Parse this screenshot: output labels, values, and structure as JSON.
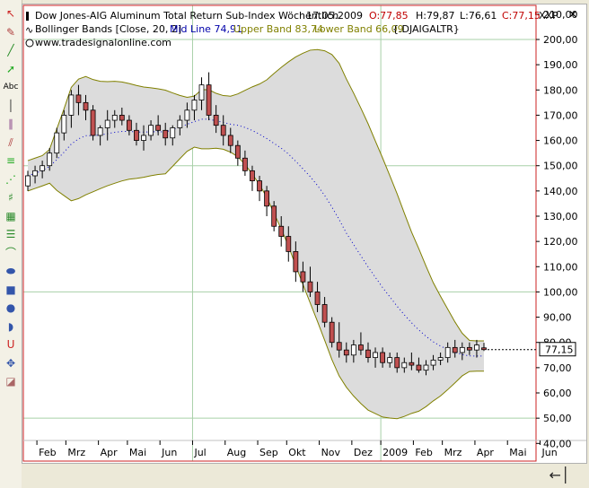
{
  "header": {
    "title": "Dow Jones-AIG Aluminum Total Return Sub-Index Wöchentlich",
    "date": "17.05.2009",
    "ohlc": [
      {
        "label": "O:77,85",
        "color": "#c00000"
      },
      {
        "label": "H:79,87",
        "color": "#000000"
      },
      {
        "label": "L:76,61",
        "color": "#000000"
      },
      {
        "label": "C:77,15",
        "color": "#c00000"
      }
    ],
    "indicator": "Bollinger Bands [Close, 20, 2]",
    "mid_label": "Mid Line 74,91",
    "upper_label": "Upper Band 83,74",
    "lower_label": "Lower Band 66,09",
    "symbol": "{.DJAIGALTR}",
    "website": "www.tradesignalonline.com",
    "currency": "XXP",
    "last_price": "77,15"
  },
  "colors": {
    "band_fill": "#dcdcdc",
    "band_line": "#808000",
    "mid_line": "#0000cc",
    "candle_up": "#ffffff",
    "candle_down": "#c05050",
    "grid": "#a8d0a8",
    "frame_red": "#cc2222"
  },
  "toolbar_icons": [
    "cursor-icon",
    "pencil-icon",
    "line-icon",
    "arrow-icon",
    "text-icon",
    "vertical-line-icon",
    "parallel-lines-icon",
    "trend-channel-icon",
    "fibonacci-icon",
    "fan-icon",
    "gann-icon",
    "grid-tool-icon",
    "regression-icon",
    "arc-icon",
    "ellipse-icon",
    "rectangle-icon",
    "circle-icon",
    "half-circle-icon",
    "magnet-icon",
    "crosshair-icon",
    "eraser-icon"
  ],
  "chart_data": {
    "type": "candlestick",
    "title": "Dow Jones-AIG Aluminum Total Return Sub-Index Wöchentlich",
    "ylim": [
      30,
      215
    ],
    "y_ticks": [
      40,
      50,
      60,
      70,
      80,
      90,
      100,
      110,
      120,
      130,
      140,
      150,
      160,
      170,
      180,
      190,
      200,
      210
    ],
    "y_tick_labels": [
      "40,00",
      "50,00",
      "60,00",
      "70,00",
      "80,00",
      "90,00",
      "100,00",
      "110,00",
      "120,00",
      "130,00",
      "140,00",
      "150,00",
      "160,00",
      "170,00",
      "180,00",
      "190,00",
      "200,00",
      "210,00"
    ],
    "x_ticks": [
      {
        "label": "Feb",
        "idx": 1.5
      },
      {
        "label": "Mrz",
        "idx": 5.5
      },
      {
        "label": "Apr",
        "idx": 10.0
      },
      {
        "label": "Mai",
        "idx": 14.0
      },
      {
        "label": "Jun",
        "idx": 18.5
      },
      {
        "label": "Jul",
        "idx": 23.0
      },
      {
        "label": "Aug",
        "idx": 27.5
      },
      {
        "label": "Sep",
        "idx": 32.0
      },
      {
        "label": "Okt",
        "idx": 36.0
      },
      {
        "label": "Nov",
        "idx": 40.5
      },
      {
        "label": "Dez",
        "idx": 45.0
      },
      {
        "label": "2009",
        "idx": 49.0
      },
      {
        "label": "Feb",
        "idx": 53.5
      },
      {
        "label": "Mrz",
        "idx": 57.5
      },
      {
        "label": "Apr",
        "idx": 62.0
      },
      {
        "label": "Mai",
        "idx": 66.5
      },
      {
        "label": "Jun",
        "idx": 71.0
      }
    ],
    "grid_y": [
      50,
      100,
      150,
      200
    ],
    "grid_x_idx": [
      23.0,
      49.0
    ],
    "ohlc": [
      [
        142,
        148,
        140,
        146
      ],
      [
        146,
        150,
        143,
        148
      ],
      [
        148,
        152,
        145,
        150
      ],
      [
        150,
        157,
        148,
        155
      ],
      [
        155,
        165,
        153,
        163
      ],
      [
        163,
        172,
        160,
        170
      ],
      [
        170,
        180,
        165,
        178
      ],
      [
        178,
        182,
        170,
        175
      ],
      [
        175,
        178,
        168,
        172
      ],
      [
        172,
        174,
        160,
        162
      ],
      [
        162,
        166,
        158,
        165
      ],
      [
        165,
        172,
        160,
        168
      ],
      [
        168,
        172,
        165,
        170
      ],
      [
        170,
        173,
        166,
        168
      ],
      [
        168,
        170,
        162,
        164
      ],
      [
        164,
        167,
        158,
        160
      ],
      [
        160,
        166,
        156,
        162
      ],
      [
        162,
        168,
        160,
        166
      ],
      [
        166,
        170,
        162,
        164
      ],
      [
        164,
        167,
        158,
        161
      ],
      [
        161,
        166,
        158,
        165
      ],
      [
        165,
        170,
        162,
        168
      ],
      [
        168,
        175,
        165,
        172
      ],
      [
        172,
        178,
        168,
        176
      ],
      [
        176,
        185,
        172,
        182
      ],
      [
        182,
        187,
        168,
        170
      ],
      [
        170,
        174,
        163,
        166
      ],
      [
        166,
        170,
        158,
        162
      ],
      [
        162,
        165,
        155,
        158
      ],
      [
        158,
        160,
        150,
        153
      ],
      [
        153,
        156,
        146,
        148
      ],
      [
        148,
        150,
        140,
        144
      ],
      [
        144,
        146,
        136,
        140
      ],
      [
        140,
        142,
        130,
        134
      ],
      [
        134,
        136,
        124,
        126
      ],
      [
        126,
        130,
        118,
        122
      ],
      [
        122,
        126,
        112,
        116
      ],
      [
        116,
        120,
        104,
        108
      ],
      [
        108,
        112,
        100,
        104
      ],
      [
        104,
        110,
        98,
        100
      ],
      [
        100,
        104,
        92,
        95
      ],
      [
        95,
        98,
        86,
        88
      ],
      [
        88,
        90,
        78,
        80
      ],
      [
        80,
        88,
        74,
        77
      ],
      [
        77,
        80,
        72,
        75
      ],
      [
        75,
        81,
        72,
        79
      ],
      [
        79,
        84,
        75,
        77
      ],
      [
        77,
        80,
        72,
        74
      ],
      [
        74,
        78,
        70,
        76
      ],
      [
        76,
        78,
        70,
        72
      ],
      [
        72,
        76,
        70,
        74
      ],
      [
        74,
        76,
        68,
        70
      ],
      [
        70,
        74,
        68,
        72
      ],
      [
        72,
        76,
        69,
        71
      ],
      [
        71,
        74,
        68,
        69
      ],
      [
        69,
        73,
        67,
        71
      ],
      [
        71,
        75,
        69,
        73
      ],
      [
        73,
        76,
        71,
        74
      ],
      [
        74,
        80,
        72,
        78
      ],
      [
        78,
        81,
        74,
        76
      ],
      [
        76,
        80,
        73,
        78
      ],
      [
        78,
        80,
        75,
        77
      ],
      [
        77,
        81,
        74,
        79
      ],
      [
        77.85,
        79.87,
        76.61,
        77.15
      ]
    ],
    "bollinger": {
      "params": "Close, 20, 2",
      "mid": [
        74.91
      ],
      "upper": [
        83.74
      ],
      "lower": [
        66.09
      ]
    },
    "last_value": 77.15
  }
}
